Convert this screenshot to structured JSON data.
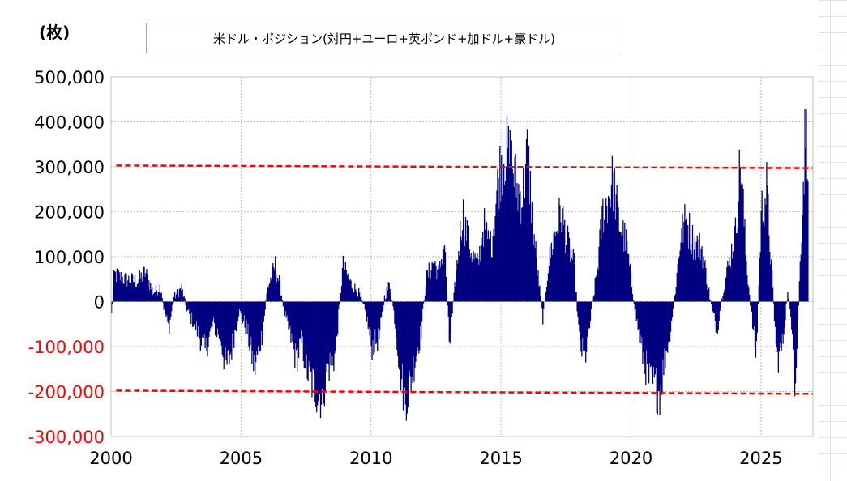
{
  "unit_label": "(枚)",
  "chart_data": {
    "type": "bar",
    "title": "米ドル・ポジション(対円+ユーロ+英ポンド+加ドル+豪ドル)",
    "xlabel": "",
    "ylabel": "",
    "xlim": [
      2000,
      2027
    ],
    "ylim": [
      -300000,
      500000
    ],
    "grid": true,
    "colors": {
      "bars": "#000080",
      "reference_lines": "#ff0000",
      "negative_ticks": "#ff0000",
      "positive_ticks": "#000000"
    },
    "x_ticks": [
      "2000",
      "2005",
      "2010",
      "2015",
      "2020",
      "2025"
    ],
    "y_ticks": [
      {
        "value": 500000,
        "label": "500,000"
      },
      {
        "value": 400000,
        "label": "400,000"
      },
      {
        "value": 300000,
        "label": "300,000"
      },
      {
        "value": 200000,
        "label": "200,000"
      },
      {
        "value": 100000,
        "label": "100,000"
      },
      {
        "value": 0,
        "label": "0"
      },
      {
        "value": -100000,
        "label": "-100,000"
      },
      {
        "value": -200000,
        "label": "-200,000"
      },
      {
        "value": -300000,
        "label": "-300,000"
      }
    ],
    "reference_lines": [
      {
        "points": [
          [
            2000.2,
            303000
          ],
          [
            2027,
            297000
          ]
        ],
        "style": "dashed"
      },
      {
        "points": [
          [
            2000.2,
            -198000
          ],
          [
            2027,
            -205000
          ]
        ],
        "style": "dashed"
      }
    ],
    "series_profile": [
      [
        2000.0,
        -30000
      ],
      [
        2000.1,
        60000
      ],
      [
        2000.5,
        50000
      ],
      [
        2001.0,
        45000
      ],
      [
        2001.3,
        65000
      ],
      [
        2001.6,
        20000
      ],
      [
        2001.9,
        35000
      ],
      [
        2002.0,
        -10000
      ],
      [
        2002.2,
        -60000
      ],
      [
        2002.4,
        10000
      ],
      [
        2002.7,
        30000
      ],
      [
        2002.9,
        -20000
      ],
      [
        2003.2,
        -50000
      ],
      [
        2003.6,
        -110000
      ],
      [
        2003.9,
        -50000
      ],
      [
        2004.2,
        -80000
      ],
      [
        2004.4,
        -150000
      ],
      [
        2004.6,
        -110000
      ],
      [
        2004.9,
        -20000
      ],
      [
        2005.2,
        -60000
      ],
      [
        2005.5,
        -150000
      ],
      [
        2005.8,
        -70000
      ],
      [
        2006.0,
        30000
      ],
      [
        2006.3,
        80000
      ],
      [
        2006.5,
        30000
      ],
      [
        2006.7,
        -40000
      ],
      [
        2006.9,
        -80000
      ],
      [
        2007.1,
        -130000
      ],
      [
        2007.3,
        -90000
      ],
      [
        2007.6,
        -170000
      ],
      [
        2007.9,
        -200000
      ],
      [
        2008.1,
        -210000
      ],
      [
        2008.3,
        -150000
      ],
      [
        2008.6,
        -120000
      ],
      [
        2008.9,
        80000
      ],
      [
        2009.2,
        40000
      ],
      [
        2009.5,
        20000
      ],
      [
        2009.8,
        -30000
      ],
      [
        2010.0,
        -100000
      ],
      [
        2010.3,
        -80000
      ],
      [
        2010.5,
        10000
      ],
      [
        2010.7,
        40000
      ],
      [
        2010.9,
        -40000
      ],
      [
        2011.1,
        -150000
      ],
      [
        2011.3,
        -220000
      ],
      [
        2011.5,
        -180000
      ],
      [
        2011.7,
        -120000
      ],
      [
        2011.9,
        -70000
      ],
      [
        2012.1,
        50000
      ],
      [
        2012.4,
        90000
      ],
      [
        2012.6,
        60000
      ],
      [
        2012.8,
        140000
      ],
      [
        2013.0,
        -100000
      ],
      [
        2013.2,
        30000
      ],
      [
        2013.5,
        200000
      ],
      [
        2013.7,
        140000
      ],
      [
        2013.9,
        100000
      ],
      [
        2014.1,
        80000
      ],
      [
        2014.3,
        170000
      ],
      [
        2014.6,
        120000
      ],
      [
        2014.9,
        280000
      ],
      [
        2015.1,
        340000
      ],
      [
        2015.4,
        310000
      ],
      [
        2015.6,
        250000
      ],
      [
        2015.8,
        230000
      ],
      [
        2016.0,
        330000
      ],
      [
        2016.2,
        180000
      ],
      [
        2016.4,
        60000
      ],
      [
        2016.6,
        -40000
      ],
      [
        2016.8,
        80000
      ],
      [
        2017.0,
        140000
      ],
      [
        2017.3,
        200000
      ],
      [
        2017.5,
        140000
      ],
      [
        2017.8,
        80000
      ],
      [
        2018.0,
        -90000
      ],
      [
        2018.2,
        -130000
      ],
      [
        2018.4,
        -50000
      ],
      [
        2018.7,
        80000
      ],
      [
        2018.9,
        200000
      ],
      [
        2019.1,
        230000
      ],
      [
        2019.3,
        270000
      ],
      [
        2019.5,
        180000
      ],
      [
        2019.8,
        130000
      ],
      [
        2020.0,
        40000
      ],
      [
        2020.2,
        -40000
      ],
      [
        2020.4,
        -110000
      ],
      [
        2020.7,
        -180000
      ],
      [
        2020.9,
        -190000
      ],
      [
        2021.1,
        -200000
      ],
      [
        2021.3,
        -120000
      ],
      [
        2021.5,
        -60000
      ],
      [
        2021.7,
        30000
      ],
      [
        2021.9,
        150000
      ],
      [
        2022.1,
        180000
      ],
      [
        2022.4,
        130000
      ],
      [
        2022.7,
        120000
      ],
      [
        2022.9,
        50000
      ],
      [
        2023.1,
        -20000
      ],
      [
        2023.3,
        -60000
      ],
      [
        2023.5,
        20000
      ],
      [
        2023.8,
        100000
      ],
      [
        2024.0,
        150000
      ],
      [
        2024.2,
        320000
      ],
      [
        2024.4,
        100000
      ],
      [
        2024.6,
        -20000
      ],
      [
        2024.8,
        -120000
      ],
      [
        2025.0,
        200000
      ],
      [
        2025.2,
        250000
      ],
      [
        2025.4,
        60000
      ],
      [
        2025.6,
        -130000
      ],
      [
        2025.8,
        -100000
      ],
      [
        2026.0,
        20000
      ],
      [
        2026.2,
        -60000
      ],
      [
        2026.3,
        -200000
      ],
      [
        2026.5,
        100000
      ],
      [
        2026.7,
        400000
      ],
      [
        2026.8,
        350000
      ]
    ]
  }
}
